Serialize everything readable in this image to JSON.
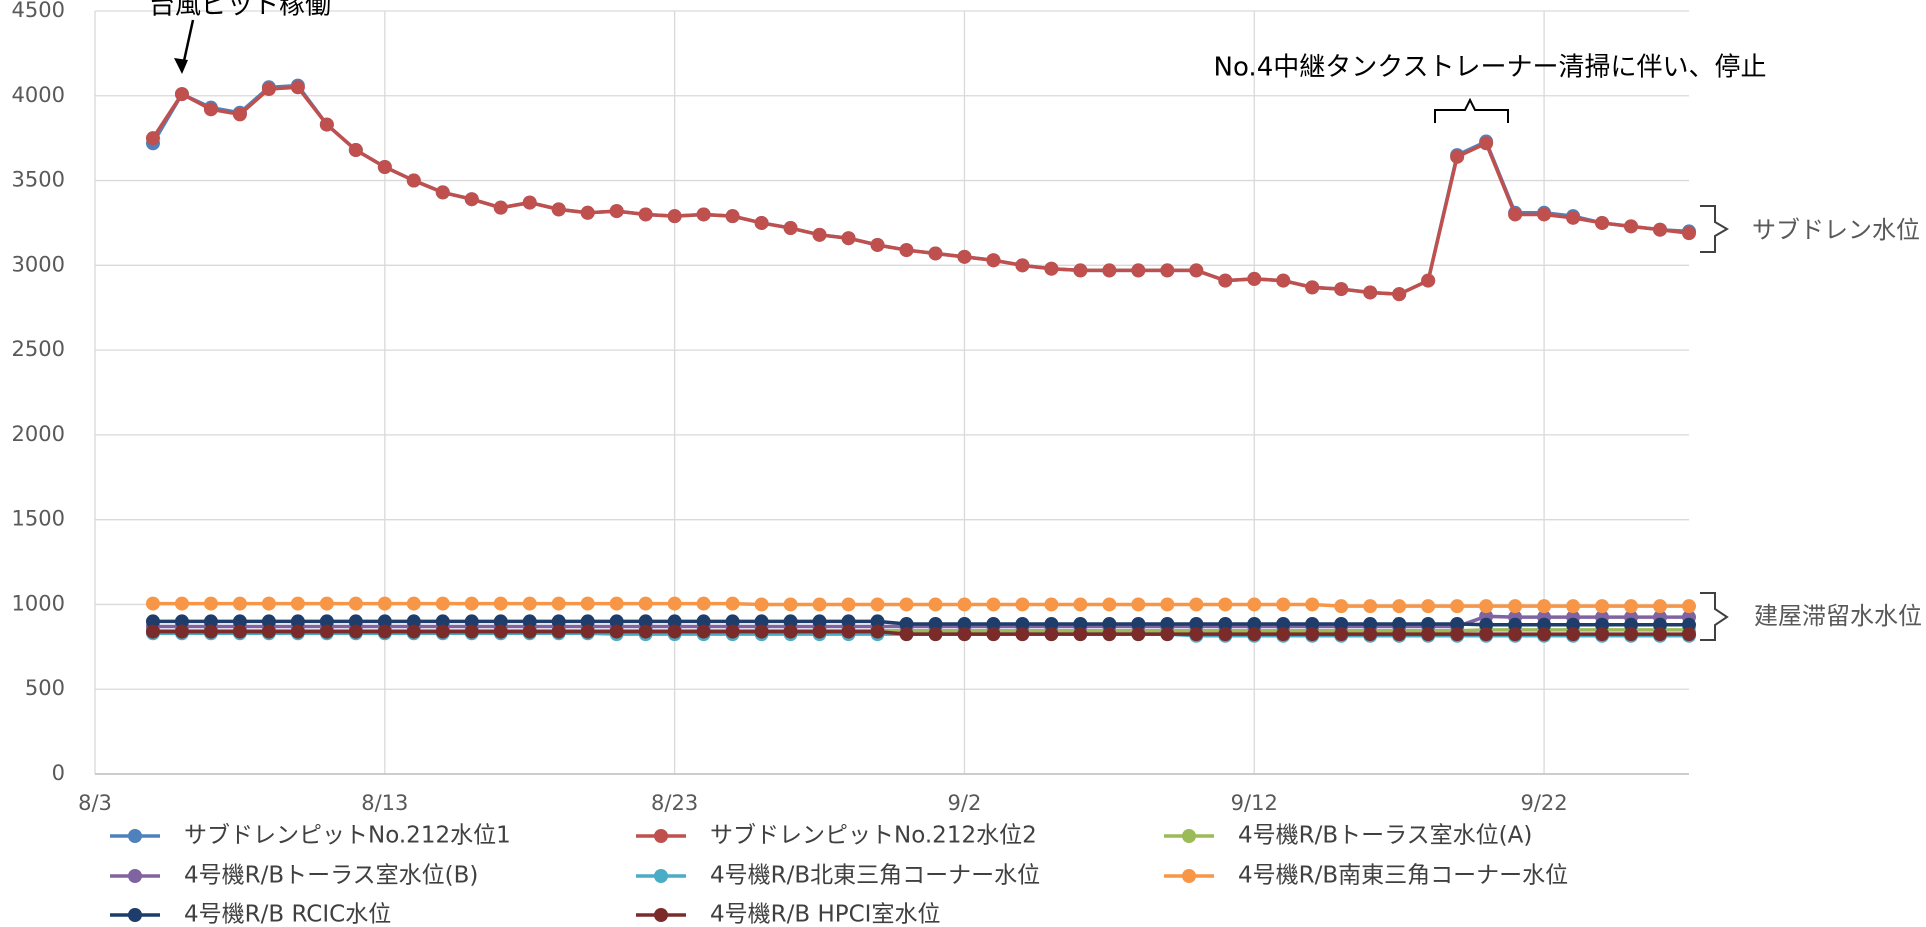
{
  "chart_data": {
    "type": "line",
    "annotations": [
      "台風ピット稼働",
      "No.4中継タンクストレーナー清掃に伴い、停止",
      "サブドレン水位",
      "建屋滞留水水位"
    ],
    "x": [
      "8/5",
      "8/6",
      "8/7",
      "8/8",
      "8/9",
      "8/10",
      "8/11",
      "8/12",
      "8/13",
      "8/14",
      "8/15",
      "8/16",
      "8/17",
      "8/18",
      "8/19",
      "8/20",
      "8/21",
      "8/22",
      "8/23",
      "8/24",
      "8/25",
      "8/26",
      "8/27",
      "8/28",
      "8/29",
      "8/30",
      "8/31",
      "9/1",
      "9/2",
      "9/3",
      "9/4",
      "9/5",
      "9/6",
      "9/7",
      "9/8",
      "9/9",
      "9/10",
      "9/11",
      "9/12",
      "9/13",
      "9/14",
      "9/15",
      "9/16",
      "9/17",
      "9/18",
      "9/19",
      "9/20",
      "9/21",
      "9/22",
      "9/23",
      "9/24",
      "9/25",
      "9/26",
      "9/27"
    ],
    "xlim": [
      "8/3",
      "9/27"
    ],
    "xticks": [
      "8/3",
      "8/13",
      "8/23",
      "9/2",
      "9/12",
      "9/22"
    ],
    "ylim": [
      0,
      4500
    ],
    "yticks": [
      0,
      500,
      1000,
      1500,
      2000,
      2500,
      3000,
      3500,
      4000,
      4500
    ],
    "grid": true,
    "legend": "bottom",
    "series": [
      {
        "name": "サブドレンピットNo.212水位1",
        "color": "#4f81bd",
        "values": [
          3720,
          4010,
          3930,
          3900,
          4050,
          4060,
          3830,
          3680,
          3580,
          3500,
          3430,
          3390,
          3340,
          3370,
          3330,
          3310,
          3320,
          3300,
          3290,
          3300,
          3290,
          3250,
          3220,
          3180,
          3160,
          3120,
          3090,
          3070,
          3050,
          3030,
          3000,
          2980,
          2970,
          2970,
          2970,
          2970,
          2970,
          2910,
          2920,
          2910,
          2870,
          2860,
          2840,
          2830,
          2910,
          3650,
          3730,
          3310,
          3310,
          3290,
          3250,
          3230,
          3210,
          3200
        ]
      },
      {
        "name": "サブドレンピットNo.212水位2",
        "color": "#c0504d",
        "values": [
          3750,
          4010,
          3920,
          3890,
          4040,
          4050,
          3830,
          3680,
          3580,
          3500,
          3430,
          3390,
          3340,
          3370,
          3330,
          3310,
          3320,
          3300,
          3290,
          3300,
          3290,
          3250,
          3220,
          3180,
          3160,
          3120,
          3090,
          3070,
          3050,
          3030,
          3000,
          2980,
          2970,
          2970,
          2970,
          2970,
          2970,
          2910,
          2920,
          2910,
          2870,
          2860,
          2840,
          2830,
          2910,
          3640,
          3720,
          3300,
          3300,
          3280,
          3250,
          3230,
          3210,
          3190
        ]
      },
      {
        "name": "4号機R/Bトーラス室水位(A)",
        "color": "#9bbb59",
        "values": [
          845,
          845,
          845,
          845,
          845,
          845,
          845,
          845,
          845,
          845,
          845,
          845,
          845,
          845,
          845,
          845,
          845,
          845,
          845,
          845,
          845,
          845,
          845,
          845,
          845,
          845,
          845,
          845,
          845,
          845,
          845,
          845,
          845,
          845,
          845,
          845,
          845,
          845,
          845,
          845,
          845,
          845,
          845,
          845,
          845,
          845,
          850,
          850,
          850,
          850,
          850,
          850,
          850,
          850
        ]
      },
      {
        "name": "4号機R/Bトーラス室水位(B)",
        "color": "#8064a2",
        "values": [
          870,
          870,
          870,
          870,
          870,
          870,
          870,
          870,
          870,
          870,
          870,
          870,
          870,
          870,
          870,
          870,
          870,
          870,
          870,
          870,
          870,
          870,
          870,
          870,
          870,
          870,
          870,
          870,
          870,
          870,
          870,
          870,
          870,
          870,
          870,
          870,
          870,
          870,
          870,
          870,
          870,
          870,
          870,
          870,
          870,
          870,
          930,
          925,
          925,
          925,
          925,
          925,
          925,
          925
        ]
      },
      {
        "name": "4号機R/B北東三角コーナー水位",
        "color": "#4bacc6",
        "values": [
          830,
          830,
          830,
          830,
          830,
          830,
          830,
          830,
          830,
          830,
          830,
          830,
          830,
          830,
          830,
          830,
          825,
          825,
          825,
          825,
          825,
          825,
          825,
          825,
          825,
          825,
          825,
          825,
          825,
          825,
          825,
          825,
          825,
          825,
          825,
          825,
          815,
          815,
          815,
          815,
          815,
          815,
          815,
          815,
          815,
          815,
          815,
          815,
          815,
          815,
          815,
          815,
          815,
          815
        ]
      },
      {
        "name": "4号機R/B南東三角コーナー水位",
        "color": "#f79646",
        "values": [
          1005,
          1005,
          1005,
          1005,
          1005,
          1005,
          1005,
          1005,
          1005,
          1005,
          1005,
          1005,
          1005,
          1005,
          1005,
          1005,
          1005,
          1005,
          1005,
          1005,
          1005,
          1000,
          1000,
          1000,
          1000,
          1000,
          1000,
          1000,
          1000,
          1000,
          1000,
          1000,
          1000,
          1000,
          1000,
          1000,
          1000,
          1000,
          1000,
          1000,
          1000,
          990,
          990,
          990,
          990,
          990,
          990,
          990,
          990,
          990,
          990,
          990,
          990,
          990
        ]
      },
      {
        "name": "4号機R/B RCIC水位",
        "color": "#1f3d6b",
        "values": [
          900,
          900,
          900,
          900,
          900,
          900,
          900,
          900,
          900,
          900,
          900,
          900,
          900,
          900,
          900,
          900,
          900,
          900,
          900,
          900,
          900,
          900,
          900,
          900,
          900,
          900,
          885,
          885,
          885,
          885,
          885,
          885,
          885,
          885,
          885,
          885,
          885,
          885,
          885,
          885,
          885,
          885,
          885,
          885,
          885,
          885,
          880,
          880,
          880,
          880,
          880,
          880,
          880,
          880
        ]
      },
      {
        "name": "4号機R/B HPCI室水位",
        "color": "#7b2c2a",
        "values": [
          840,
          840,
          840,
          840,
          840,
          840,
          840,
          840,
          840,
          840,
          840,
          840,
          840,
          840,
          840,
          840,
          840,
          840,
          840,
          840,
          840,
          840,
          840,
          840,
          840,
          840,
          825,
          825,
          825,
          825,
          825,
          825,
          825,
          825,
          825,
          825,
          825,
          825,
          825,
          825,
          825,
          825,
          825,
          825,
          825,
          825,
          825,
          825,
          825,
          825,
          825,
          825,
          825,
          825
        ]
      }
    ]
  }
}
